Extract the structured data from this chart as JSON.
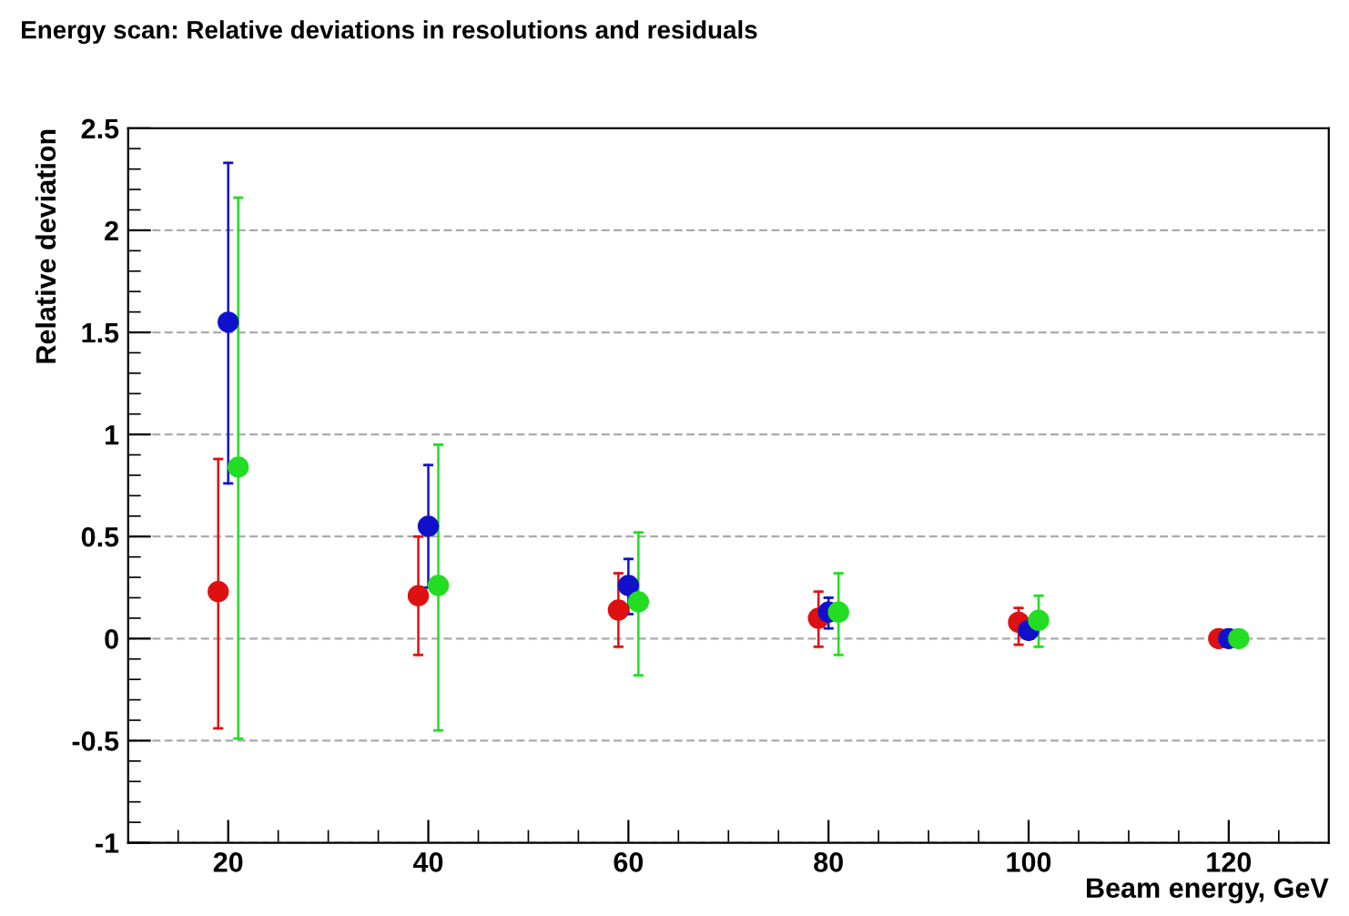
{
  "chart_data": {
    "type": "scatter",
    "title": "Energy scan: Relative deviations in resolutions and residuals",
    "xlabel": "Beam energy, GeV",
    "ylabel": "Relative deviation",
    "xlim": [
      10,
      130
    ],
    "ylim": [
      -1,
      2.5
    ],
    "xticks": [
      {
        "value": 15,
        "label": null
      },
      20,
      {
        "value": 25,
        "label": null
      },
      {
        "value": 30,
        "label": null
      },
      {
        "value": 35,
        "label": null
      },
      40,
      {
        "value": 45,
        "label": null
      },
      {
        "value": 50,
        "label": null
      },
      {
        "value": 55,
        "label": null
      },
      60,
      {
        "value": 65,
        "label": null
      },
      {
        "value": 70,
        "label": null
      },
      {
        "value": 75,
        "label": null
      },
      80,
      {
        "value": 85,
        "label": null
      },
      {
        "value": 90,
        "label": null
      },
      {
        "value": 95,
        "label": null
      },
      100,
      {
        "value": 105,
        "label": null
      },
      {
        "value": 110,
        "label": null
      },
      {
        "value": 115,
        "label": null
      },
      120,
      {
        "value": 125,
        "label": null
      }
    ],
    "yticks": [
      -1,
      {
        "value": -0.9,
        "label": null
      },
      {
        "value": -0.8,
        "label": null
      },
      {
        "value": -0.7,
        "label": null
      },
      {
        "value": -0.6,
        "label": null
      },
      -0.5,
      {
        "value": -0.4,
        "label": null
      },
      {
        "value": -0.3,
        "label": null
      },
      {
        "value": -0.2,
        "label": null
      },
      {
        "value": -0.1,
        "label": null
      },
      0,
      {
        "value": 0.1,
        "label": null
      },
      {
        "value": 0.2,
        "label": null
      },
      {
        "value": 0.3,
        "label": null
      },
      {
        "value": 0.4,
        "label": null
      },
      0.5,
      {
        "value": 0.6,
        "label": null
      },
      {
        "value": 0.7,
        "label": null
      },
      {
        "value": 0.8,
        "label": null
      },
      {
        "value": 0.9,
        "label": null
      },
      1,
      {
        "value": 1.1,
        "label": null
      },
      {
        "value": 1.2,
        "label": null
      },
      {
        "value": 1.3,
        "label": null
      },
      {
        "value": 1.4,
        "label": null
      },
      1.5,
      {
        "value": 1.6,
        "label": null
      },
      {
        "value": 1.7,
        "label": null
      },
      {
        "value": 1.8,
        "label": null
      },
      {
        "value": 1.9,
        "label": null
      },
      2,
      {
        "value": 2.1,
        "label": null
      },
      {
        "value": 2.2,
        "label": null
      },
      {
        "value": 2.3,
        "label": null
      },
      {
        "value": 2.4,
        "label": null
      },
      2.5
    ],
    "grid": "y",
    "marker": "circle",
    "series": [
      {
        "color": "#dd1111",
        "x": [
          19,
          39,
          59,
          79,
          99,
          119
        ],
        "values": [
          0.23,
          0.21,
          0.14,
          0.1,
          0.08,
          0
        ],
        "errors": [
          [
            -0.44,
            0.88
          ],
          [
            -0.08,
            0.5
          ],
          [
            -0.04,
            0.32
          ],
          [
            -0.04,
            0.23
          ],
          [
            -0.03,
            0.15
          ],
          null
        ]
      },
      {
        "color": "#1111cc",
        "x": [
          20,
          40,
          60,
          80,
          100,
          120
        ],
        "values": [
          1.55,
          0.55,
          0.26,
          0.13,
          0.04,
          0
        ],
        "errors": [
          [
            0.76,
            2.33
          ],
          [
            0.25,
            0.85
          ],
          [
            0.12,
            0.39
          ],
          [
            0.05,
            0.2
          ],
          [
            0.0,
            0.08
          ],
          null
        ]
      },
      {
        "color": "#22dd22",
        "x": [
          21,
          41,
          61,
          81,
          101,
          121
        ],
        "values": [
          0.84,
          0.26,
          0.18,
          0.13,
          0.09,
          0
        ],
        "errors": [
          [
            -0.49,
            2.16
          ],
          [
            -0.45,
            0.95
          ],
          [
            -0.18,
            0.52
          ],
          [
            -0.08,
            0.32
          ],
          [
            -0.04,
            0.21
          ],
          null
        ]
      }
    ]
  }
}
